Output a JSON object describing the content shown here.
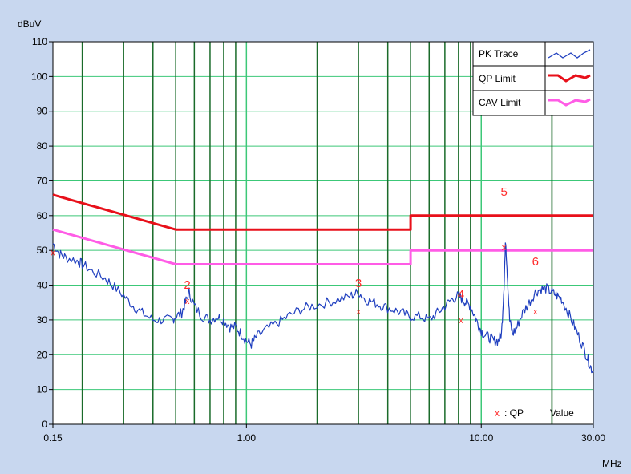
{
  "chart_data": {
    "type": "line",
    "title": "",
    "ylabel": "dBuV",
    "xlabel": "MHz",
    "x_scale": "log",
    "xlim": [
      0.15,
      30.0
    ],
    "ylim": [
      0,
      110
    ],
    "grid": true,
    "legend_position": "top-right",
    "y_ticks": [
      "0",
      "10",
      "20",
      "30",
      "40",
      "50",
      "60",
      "70",
      "80",
      "90",
      "100",
      "110"
    ],
    "x_ticks": [
      {
        "label": "0.15",
        "value": 0.15
      },
      {
        "label": "1.00",
        "value": 1.0
      },
      {
        "label": "10.00",
        "value": 10.0
      },
      {
        "label": "30.00",
        "value": 30.0
      }
    ],
    "legend": [
      {
        "name": "PK Trace",
        "color": "#1f3fbf"
      },
      {
        "name": "QP Limit",
        "color": "#e8101a"
      },
      {
        "name": "CAV Limit",
        "color": "#ff5ce6"
      }
    ],
    "series": [
      {
        "name": "QP Limit",
        "color": "#e8101a",
        "x": [
          0.15,
          0.5,
          5.0,
          5.0,
          30.0
        ],
        "y": [
          66,
          56,
          56,
          60,
          60
        ]
      },
      {
        "name": "CAV Limit",
        "color": "#ff5ce6",
        "x": [
          0.15,
          0.5,
          5.0,
          5.0,
          30.0
        ],
        "y": [
          56,
          46,
          46,
          50,
          50
        ]
      },
      {
        "name": "PK Trace",
        "color": "#1f3fbf",
        "x": [
          0.15,
          0.16,
          0.17,
          0.19,
          0.2,
          0.22,
          0.25,
          0.27,
          0.3,
          0.33,
          0.36,
          0.4,
          0.44,
          0.48,
          0.5,
          0.53,
          0.55,
          0.57,
          0.6,
          0.65,
          0.7,
          0.75,
          0.8,
          0.85,
          0.9,
          0.95,
          1.0,
          1.05,
          1.1,
          1.2,
          1.35,
          1.5,
          1.7,
          1.9,
          2.2,
          2.5,
          2.8,
          3.0,
          3.2,
          3.5,
          3.8,
          4.2,
          4.6,
          5.0,
          5.5,
          6.0,
          6.5,
          7.0,
          7.5,
          8.0,
          8.3,
          8.6,
          9.0,
          9.4,
          9.8,
          10.2,
          10.8,
          11.3,
          11.8,
          12.2,
          12.5,
          12.7,
          12.9,
          13.2,
          13.6,
          14.2,
          15.0,
          16.0,
          17.0,
          18.0,
          19.0,
          20.0,
          21.0,
          22.0,
          23.5,
          25.0,
          26.5,
          28.0,
          29.0,
          30.0
        ],
        "y": [
          52,
          49,
          48,
          47,
          46,
          44,
          42,
          40,
          37,
          34,
          32,
          30,
          30,
          30,
          31,
          32,
          35,
          38,
          34,
          31,
          30,
          31,
          30,
          28,
          28,
          26,
          24,
          23,
          25,
          27,
          29,
          31,
          33,
          34,
          35,
          36,
          37,
          38,
          36,
          35,
          34,
          33,
          32,
          31,
          31,
          30,
          32,
          34,
          36,
          37,
          36,
          35,
          34,
          31,
          28,
          26,
          25,
          24,
          24,
          26,
          40,
          53,
          44,
          30,
          26,
          28,
          32,
          35,
          38,
          39,
          39,
          38,
          37,
          36,
          32,
          28,
          24,
          20,
          17,
          15
        ]
      }
    ],
    "qp_values": [
      {
        "label": "",
        "x": 0.15,
        "y": 49.5
      },
      {
        "label": "2",
        "x": 0.56,
        "y": 35.5
      },
      {
        "label": "3",
        "x": 3.0,
        "y": 32.5
      },
      {
        "label": "4",
        "x": 8.2,
        "y": 30
      },
      {
        "label": "5",
        "x": 12.5,
        "y": 51
      },
      {
        "label": "6",
        "x": 17.0,
        "y": 32.5
      }
    ],
    "marker_symbol": "x",
    "marker_note": ": QP",
    "marker_note_suffix": "Value"
  }
}
